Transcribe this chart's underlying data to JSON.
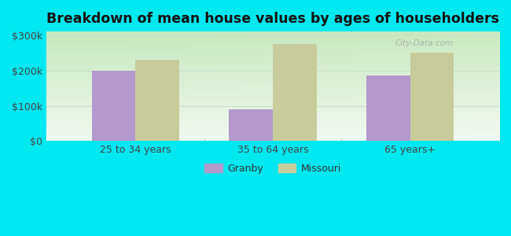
{
  "title": "Breakdown of mean house values by ages of householders",
  "categories": [
    "25 to 34 years",
    "35 to 64 years",
    "65 years+"
  ],
  "granby_values": [
    200000,
    90000,
    185000
  ],
  "missouri_values": [
    230000,
    275000,
    250000
  ],
  "granby_color": "#b399cc",
  "missouri_color": "#c8cc9a",
  "background_outer": "#00e8f0",
  "background_inner_top": "#d4edd4",
  "background_inner_bottom": "#f0f8ee",
  "yticks": [
    0,
    100000,
    200000,
    300000
  ],
  "ytick_labels": [
    "$0",
    "$100k",
    "$200k",
    "$300k"
  ],
  "ylim": [
    0,
    310000
  ],
  "legend_labels": [
    "Granby",
    "Missouri"
  ],
  "bar_width": 0.32,
  "title_fontsize": 12.5,
  "tick_fontsize": 9,
  "legend_fontsize": 9,
  "watermark": "City-Data.com",
  "separator_color": "#aaccaa",
  "grid_color": "#ccddcc"
}
